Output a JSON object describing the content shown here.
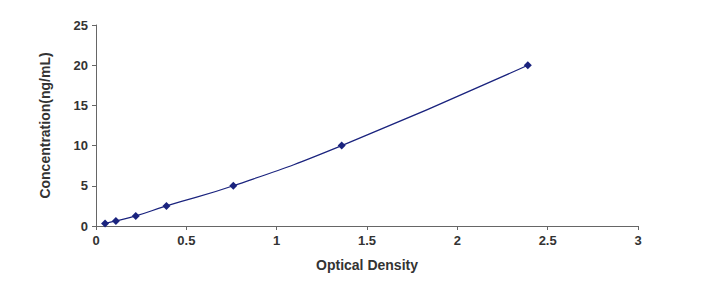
{
  "chart_data": {
    "type": "line",
    "x": [
      0.05,
      0.11,
      0.22,
      0.39,
      0.76,
      1.36,
      2.39
    ],
    "values": [
      0.31,
      0.63,
      1.25,
      2.5,
      5,
      10,
      20
    ],
    "xlabel": "Optical Density",
    "ylabel": "Concentration(ng/mL)",
    "xlim": [
      0,
      3
    ],
    "xticks": [
      0,
      0.5,
      1,
      1.5,
      2,
      2.5,
      3
    ],
    "ylim": [
      0,
      25
    ],
    "yticks": [
      0,
      5,
      10,
      15,
      20,
      25
    ],
    "color": "#1a237e",
    "marker": "diamond",
    "line_style": "solid",
    "grid": false
  }
}
